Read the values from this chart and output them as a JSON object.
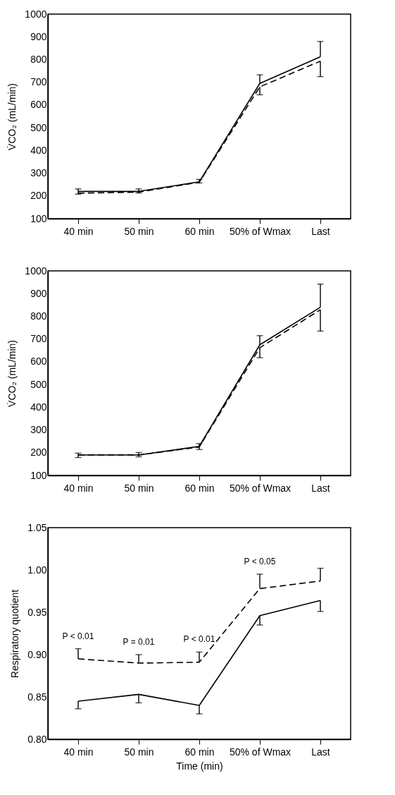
{
  "chart_data": [
    {
      "type": "line",
      "ylabel": "V̇CO₂ (mL/min)",
      "categories": [
        "40 min",
        "50 min",
        "60 min",
        "50% of Wmax",
        "Last"
      ],
      "ylim": [
        100,
        1000
      ],
      "yticks": [
        100,
        200,
        300,
        400,
        500,
        600,
        700,
        800,
        900,
        1000
      ],
      "marker": "none",
      "grid": false,
      "series": [
        {
          "color": "#000000",
          "line_style": "solid",
          "values": [
            220,
            220,
            262,
            695,
            812
          ],
          "errors": [
            [
              208,
              231
            ],
            [
              213,
              231
            ],
            [
              257,
              273
            ],
            [
              695,
              733
            ],
            [
              812,
              880
            ]
          ]
        },
        {
          "color": "#000000",
          "line_style": "dashed",
          "values": [
            212,
            217,
            260,
            680,
            793
          ],
          "errors": [
            null,
            null,
            null,
            [
              645,
              680
            ],
            [
              725,
              793
            ]
          ]
        }
      ]
    },
    {
      "type": "line",
      "ylabel": "V̇CO₂ (mL/min)",
      "categories": [
        "40 min",
        "50 min",
        "60 min",
        "50% of Wmax",
        "Last"
      ],
      "ylim": [
        100,
        1000
      ],
      "yticks": [
        100,
        200,
        300,
        400,
        500,
        600,
        700,
        800,
        900,
        1000
      ],
      "marker": "none",
      "grid": false,
      "series": [
        {
          "color": "#000000",
          "line_style": "solid",
          "values": [
            190,
            190,
            228,
            675,
            840
          ],
          "errors": [
            [
              179,
              198
            ],
            [
              182,
              201
            ],
            [
              214,
              240
            ],
            [
              675,
              715
            ],
            [
              840,
              942
            ]
          ]
        },
        {
          "color": "#000000",
          "line_style": "dashed",
          "values": [
            190,
            190,
            225,
            662,
            829
          ],
          "errors": [
            null,
            null,
            null,
            [
              618,
              662
            ],
            [
              735,
              829
            ]
          ]
        }
      ]
    },
    {
      "type": "line",
      "xlabel": "Time (min)",
      "ylabel": "Respiratory quotient",
      "categories": [
        "40 min",
        "50 min",
        "60 min",
        "50% of Wmax",
        "Last"
      ],
      "ylim": [
        0.8,
        1.05
      ],
      "yticks": [
        {
          "value": 0.8,
          "label": "0.80"
        },
        {
          "value": 0.85,
          "label": "0.85"
        },
        {
          "value": 0.9,
          "label": "0.90"
        },
        {
          "value": 0.95,
          "label": "0.95"
        },
        {
          "value": 1.0,
          "label": "1.00"
        },
        {
          "value": 1.05,
          "label": "1.05"
        }
      ],
      "marker": "none",
      "grid": false,
      "series": [
        {
          "color": "#000000",
          "line_style": "solid",
          "values": [
            0.845,
            0.853,
            0.84,
            0.946,
            0.964
          ],
          "errors": [
            [
              0.836,
              0.845
            ],
            [
              0.843,
              0.853
            ],
            [
              0.83,
              0.84
            ],
            [
              0.935,
              0.946
            ],
            [
              0.951,
              0.964
            ]
          ]
        },
        {
          "color": "#000000",
          "line_style": "dashed",
          "values": [
            0.895,
            0.89,
            0.891,
            0.978,
            0.987
          ],
          "errors": [
            [
              0.895,
              0.907
            ],
            [
              0.89,
              0.9
            ],
            [
              0.891,
              0.903
            ],
            [
              0.978,
              0.995
            ],
            [
              0.987,
              1.002
            ]
          ]
        }
      ],
      "annotations": [
        "P < 0.01",
        "P = 0.01",
        "P < 0.01",
        "P < 0.05"
      ]
    }
  ]
}
